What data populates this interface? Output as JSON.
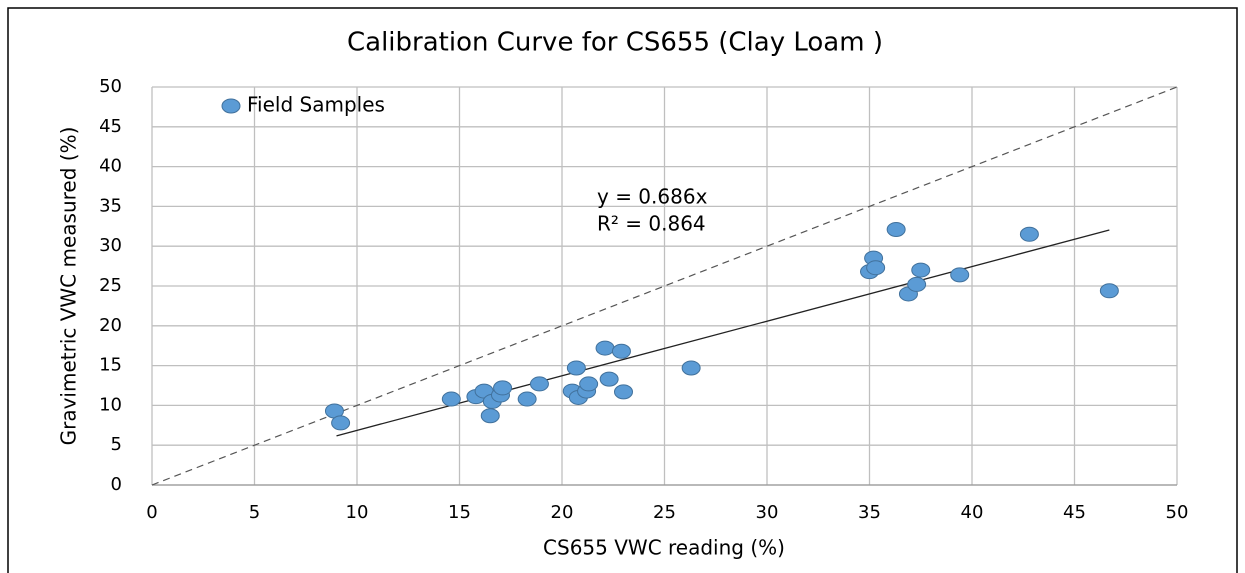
{
  "chart_data": {
    "type": "scatter",
    "title": "Calibration Curve for CS655 (Clay Loam )",
    "x_label": "CS655 VWC reading (%)",
    "y_label": "Gravimetric VWC measured (%)",
    "xlim": [
      0,
      50
    ],
    "ylim": [
      0,
      50
    ],
    "xticks": [
      0,
      5,
      10,
      15,
      20,
      25,
      30,
      35,
      40,
      45,
      50
    ],
    "yticks": [
      0,
      5,
      10,
      15,
      20,
      25,
      30,
      35,
      40,
      45,
      50
    ],
    "grid": true,
    "legend": "top-left",
    "identity_line": true,
    "trendline": {
      "slope": 0.686,
      "x_range": [
        9,
        46.7
      ]
    },
    "annotations": [
      "y = 0.686x",
      "R² = 0.864"
    ],
    "series": [
      {
        "name": "Field Samples",
        "color": "#5b9bd5",
        "x": [
          8.9,
          9.2,
          14.6,
          15.8,
          16.2,
          16.5,
          16.6,
          17.0,
          17.1,
          18.3,
          18.9,
          20.5,
          20.7,
          20.8,
          21.2,
          21.3,
          22.1,
          22.3,
          22.9,
          23.0,
          26.3,
          35.0,
          35.2,
          35.3,
          36.3,
          36.9,
          37.3,
          37.5,
          39.4,
          42.8,
          46.7
        ],
        "values": [
          9.3,
          7.8,
          10.8,
          11.1,
          11.8,
          8.7,
          10.5,
          11.3,
          12.2,
          10.8,
          12.7,
          11.8,
          14.7,
          11.0,
          11.8,
          12.7,
          17.2,
          13.3,
          16.8,
          11.7,
          14.7,
          26.8,
          28.5,
          27.3,
          32.1,
          24.0,
          25.2,
          27.0,
          26.4,
          31.5,
          24.4
        ]
      }
    ]
  }
}
